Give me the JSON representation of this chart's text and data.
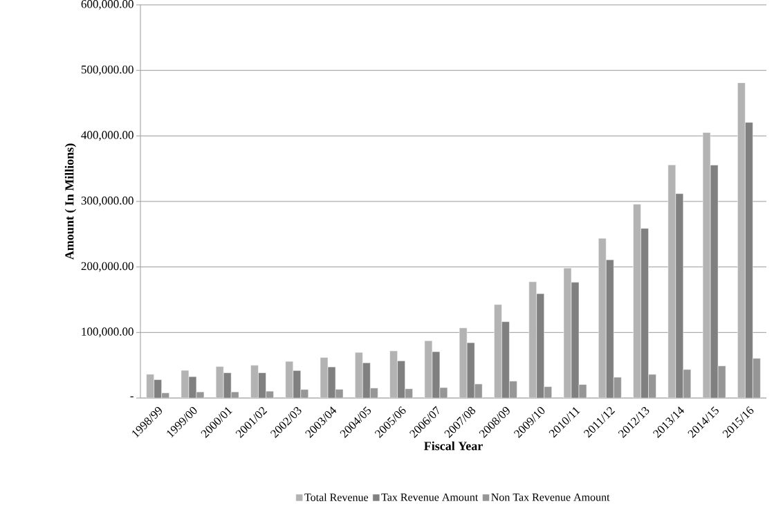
{
  "chart_data": {
    "type": "bar",
    "xlabel": "Fiscal Year",
    "ylabel": "Amount ( In Millions)",
    "categories": [
      "1998/99",
      "1999/00",
      "2000/01",
      "2001/02",
      "2002/03",
      "2003/04",
      "2004/05",
      "2005/06",
      "2006/07",
      "2007/08",
      "2008/09",
      "2009/10",
      "2010/11",
      "2011/12",
      "2012/13",
      "2013/14",
      "2014/15",
      "2015/16"
    ],
    "series": [
      {
        "name": "Total Revenue",
        "color": "#b3b3b3",
        "values": [
          36300,
          42200,
          48100,
          50000,
          55900,
          61900,
          69600,
          71900,
          87400,
          107000,
          142700,
          177400,
          198400,
          243700,
          295700,
          355800,
          405200,
          481200
        ]
      },
      {
        "name": "Tax Revenue Amount",
        "color": "#808080",
        "values": [
          28100,
          32600,
          38500,
          38500,
          41900,
          47400,
          53700,
          56700,
          70700,
          84400,
          116500,
          159300,
          176600,
          210900,
          258800,
          311900,
          355500,
          420700
        ]
      },
      {
        "name": "Non Tax Revenue Amount",
        "color": "#969696",
        "values": [
          7800,
          9300,
          9300,
          10400,
          13000,
          13300,
          15200,
          14100,
          15900,
          21400,
          25800,
          17300,
          20600,
          31700,
          36100,
          43500,
          49000,
          60500
        ]
      }
    ],
    "ylim": [
      0,
      600000
    ],
    "yticks": [
      {
        "value": 0,
        "label": "-"
      },
      {
        "value": 100000,
        "label": "100,000.00"
      },
      {
        "value": 200000,
        "label": "200,000.00"
      },
      {
        "value": 300000,
        "label": "300,000.00"
      },
      {
        "value": 400000,
        "label": "400,000.00"
      },
      {
        "value": 500000,
        "label": "500,000.00"
      },
      {
        "value": 600000,
        "label": "600,000.00"
      }
    ],
    "grid": "y",
    "legend": "bottom"
  }
}
